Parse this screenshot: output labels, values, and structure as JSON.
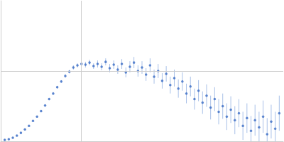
{
  "chart_data": {
    "type": "scatter",
    "x": [
      0.005,
      0.01,
      0.015,
      0.02,
      0.025,
      0.03,
      0.035,
      0.04,
      0.045,
      0.05,
      0.055,
      0.06,
      0.065,
      0.07,
      0.075,
      0.08,
      0.085,
      0.09,
      0.095,
      0.1,
      0.105,
      0.11,
      0.115,
      0.12,
      0.125,
      0.13,
      0.135,
      0.14,
      0.145,
      0.15,
      0.155,
      0.16,
      0.165,
      0.17,
      0.175,
      0.18,
      0.185,
      0.19,
      0.195,
      0.2,
      0.205,
      0.21,
      0.215,
      0.22,
      0.225,
      0.23,
      0.235,
      0.24,
      0.245,
      0.25,
      0.255,
      0.26,
      0.265,
      0.27,
      0.275,
      0.28,
      0.285,
      0.29,
      0.295,
      0.3,
      0.305,
      0.31,
      0.315,
      0.32,
      0.325,
      0.33,
      0.335,
      0.34,
      0.345
    ],
    "values": [
      0.02,
      0.03,
      0.05,
      0.08,
      0.12,
      0.17,
      0.22,
      0.29,
      0.35,
      0.43,
      0.51,
      0.6,
      0.68,
      0.77,
      0.85,
      0.93,
      0.99,
      1.05,
      1.08,
      1.1,
      1.09,
      1.12,
      1.07,
      1.1,
      1.06,
      1.13,
      1.04,
      1.09,
      1.02,
      1.1,
      0.98,
      1.06,
      1.12,
      1.0,
      1.05,
      0.95,
      1.08,
      0.92,
      1.0,
      0.86,
      0.96,
      0.8,
      0.9,
      0.75,
      0.85,
      0.68,
      0.78,
      0.6,
      0.72,
      0.55,
      0.65,
      0.48,
      0.6,
      0.42,
      0.5,
      0.35,
      0.45,
      0.3,
      0.4,
      0.22,
      0.33,
      0.15,
      0.3,
      0.2,
      0.35,
      0.1,
      0.28,
      0.18,
      0.4
    ],
    "errors": [
      0.01,
      0.01,
      0.01,
      0.01,
      0.01,
      0.01,
      0.01,
      0.01,
      0.01,
      0.015,
      0.015,
      0.015,
      0.02,
      0.02,
      0.02,
      0.025,
      0.025,
      0.03,
      0.03,
      0.03,
      0.04,
      0.04,
      0.04,
      0.05,
      0.05,
      0.05,
      0.06,
      0.06,
      0.06,
      0.07,
      0.07,
      0.08,
      0.08,
      0.08,
      0.09,
      0.09,
      0.1,
      0.1,
      0.1,
      0.11,
      0.11,
      0.12,
      0.12,
      0.13,
      0.13,
      0.14,
      0.14,
      0.15,
      0.15,
      0.16,
      0.16,
      0.17,
      0.17,
      0.18,
      0.18,
      0.19,
      0.19,
      0.2,
      0.2,
      0.2,
      0.21,
      0.21,
      0.22,
      0.22,
      0.23,
      0.23,
      0.24,
      0.24,
      0.25
    ],
    "color": "#3a6bc4",
    "xlim": [
      0,
      0.35
    ],
    "xticks": [
      0.1
    ],
    "ylim": [
      0,
      2
    ],
    "yticks": [
      1
    ],
    "grid": true,
    "tick_labels": false
  }
}
